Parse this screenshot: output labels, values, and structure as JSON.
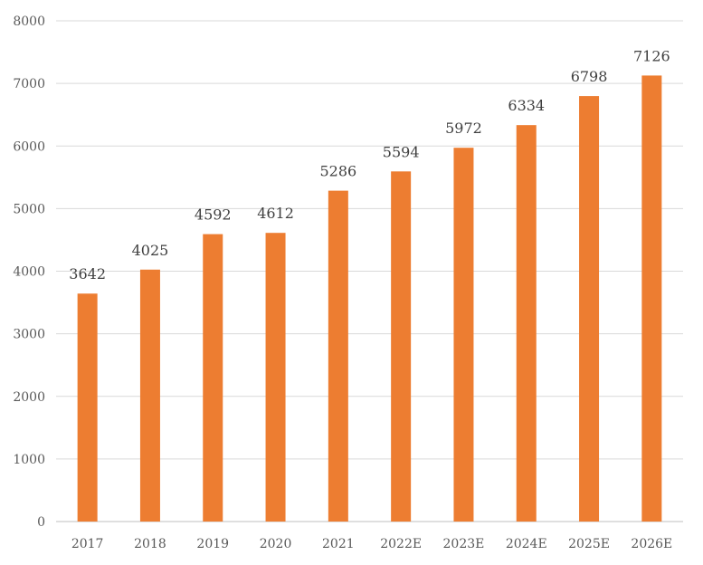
{
  "chart_data": {
    "type": "bar",
    "title": "",
    "xlabel": "",
    "ylabel": "",
    "categories": [
      "2017",
      "2018",
      "2019",
      "2020",
      "2021",
      "2022E",
      "2023E",
      "2024E",
      "2025E",
      "2026E"
    ],
    "values": [
      3642,
      4025,
      4592,
      4612,
      5286,
      5594,
      5972,
      6334,
      6798,
      7126
    ],
    "ylim": [
      0,
      8000
    ],
    "yticks": [
      "0",
      "1000",
      "2000",
      "3000",
      "4000",
      "5000",
      "6000",
      "7000",
      "8000"
    ],
    "grid": true,
    "legend": "none",
    "bar_color": "#ED7D31",
    "data_labels": true
  }
}
